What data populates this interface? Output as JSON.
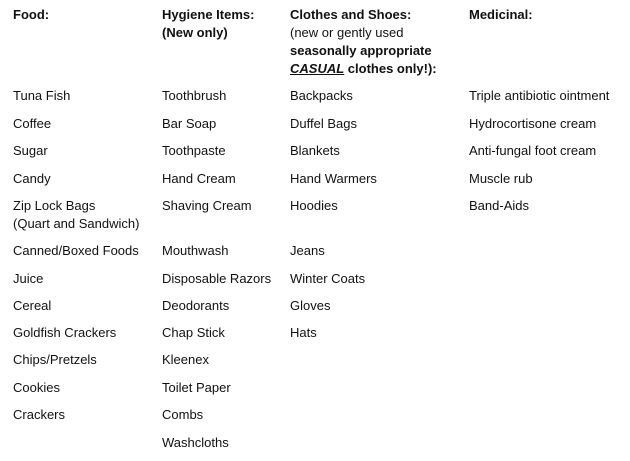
{
  "headers": [
    {
      "title": "Food:"
    },
    {
      "title": "Hygiene Items:",
      "note": "(New only)"
    },
    {
      "title": "Clothes and Shoes:",
      "note": "(new or gently used",
      "note_bold": "seasonally appropriate",
      "emphasis": "CASUAL",
      "note_end": " clothes only!):"
    },
    {
      "title": "Medicinal:"
    }
  ],
  "rows": [
    [
      "Tuna Fish",
      "Toothbrush",
      "Backpacks",
      "Triple antibiotic ointment"
    ],
    [
      "Coffee",
      "Bar Soap",
      "Duffel Bags",
      "Hydrocortisone cream"
    ],
    [
      "Sugar",
      "Toothpaste",
      "Blankets",
      "Anti-fungal foot cream"
    ],
    [
      "Candy",
      "Hand Cream",
      "Hand Warmers",
      "Muscle rub"
    ],
    [
      "Zip Lock Bags",
      "Shaving Cream",
      "Hoodies",
      "Band-Aids"
    ],
    [
      "(Quart and Sandwich)",
      "",
      "",
      ""
    ],
    [
      "Canned/Boxed Foods",
      "Mouthwash",
      "Jeans",
      ""
    ],
    [
      "Juice",
      "Disposable Razors",
      "Winter Coats",
      ""
    ],
    [
      "Cereal",
      "Deodorants",
      "Gloves",
      ""
    ],
    [
      "Goldfish Crackers",
      "Chap Stick",
      "Hats",
      ""
    ],
    [
      "Chips/Pretzels",
      "Kleenex",
      "",
      ""
    ],
    [
      "Cookies",
      "Toilet Paper",
      "",
      ""
    ],
    [
      "Crackers",
      "Combs",
      "",
      ""
    ],
    [
      "",
      "Washcloths",
      "",
      ""
    ]
  ]
}
